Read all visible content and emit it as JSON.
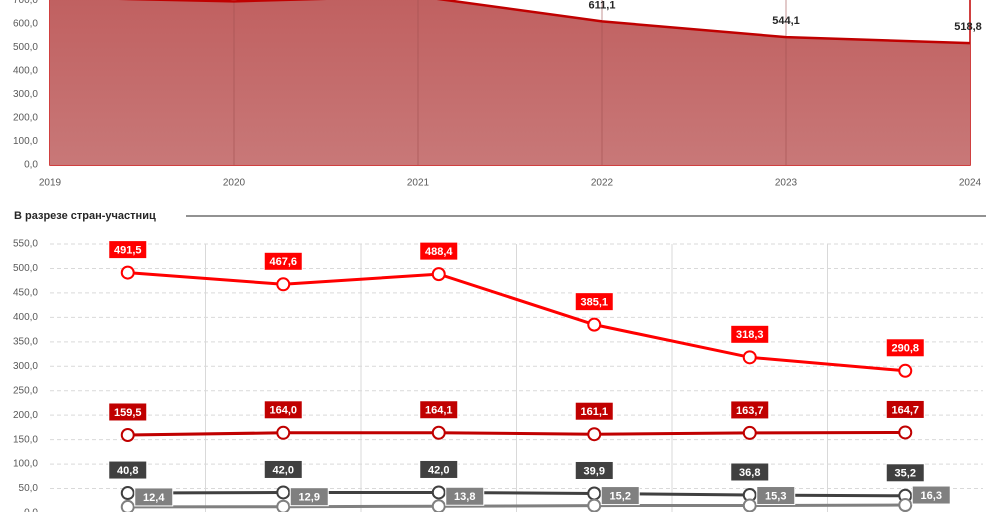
{
  "chart_data": [
    {
      "type": "area",
      "categories": [
        "2019",
        "2020",
        "2021",
        "2022",
        "2023",
        "2024"
      ],
      "values": [
        714.0,
        696.4,
        718.3,
        611.1,
        544.1,
        518.8
      ],
      "value_labels": [
        null,
        null,
        null,
        "611,1",
        "544,1",
        "518,8"
      ],
      "color": "#c00000",
      "ylim": [
        0,
        800
      ],
      "yticks": [
        {
          "value": 0,
          "label": "0,0"
        },
        {
          "value": 100,
          "label": "100,0"
        },
        {
          "value": 200,
          "label": "200,0"
        },
        {
          "value": 300,
          "label": "300,0"
        },
        {
          "value": 400,
          "label": "400,0"
        },
        {
          "value": 500,
          "label": "500,0"
        },
        {
          "value": 600,
          "label": "600,0"
        },
        {
          "value": 700,
          "label": "700,0"
        }
      ],
      "grid": true
    },
    {
      "type": "line",
      "title": "В разрезе стран-участниц",
      "categories": [
        null,
        null,
        null,
        null,
        null,
        null
      ],
      "ylim": [
        0,
        550
      ],
      "yticks": [
        {
          "value": 0,
          "label": "0,0"
        },
        {
          "value": 50,
          "label": "50,0"
        },
        {
          "value": 100,
          "label": "100,0"
        },
        {
          "value": 150,
          "label": "150,0"
        },
        {
          "value": 200,
          "label": "200,0"
        },
        {
          "value": 250,
          "label": "250,0"
        },
        {
          "value": 300,
          "label": "300,0"
        },
        {
          "value": 350,
          "label": "350,0"
        },
        {
          "value": 400,
          "label": "400,0"
        },
        {
          "value": 450,
          "label": "450,0"
        },
        {
          "value": 500,
          "label": "500,0"
        },
        {
          "value": 550,
          "label": "550,0"
        }
      ],
      "grid": true,
      "series": [
        {
          "color": "#ff0000",
          "values": [
            491.5,
            467.6,
            488.4,
            385.1,
            318.3,
            290.8
          ],
          "value_labels": [
            "491,5",
            "467,6",
            "488,4",
            "385,1",
            "318,3",
            "290,8"
          ]
        },
        {
          "color": "#c00000",
          "values": [
            159.5,
            164.0,
            164.1,
            161.1,
            163.7,
            164.7
          ],
          "value_labels": [
            "159,5",
            "164,0",
            "164,1",
            "161,1",
            "163,7",
            "164,7"
          ]
        },
        {
          "color": "#404040",
          "values": [
            40.8,
            42.0,
            42.0,
            39.9,
            36.8,
            35.2
          ],
          "value_labels": [
            "40,8",
            "42,0",
            "42,0",
            "39,9",
            "36,8",
            "35,2"
          ]
        },
        {
          "color": "#808080",
          "values": [
            12.4,
            12.9,
            13.8,
            15.2,
            15.3,
            16.3
          ],
          "value_labels": [
            "12,4",
            "12,9",
            "13,8",
            "15,2",
            "15,3",
            "16,3"
          ]
        }
      ]
    }
  ]
}
